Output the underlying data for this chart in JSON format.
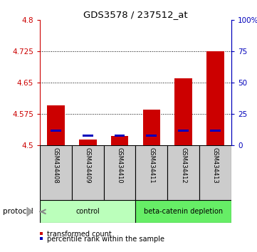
{
  "title": "GDS3578 / 237512_at",
  "samples": [
    "GSM434408",
    "GSM434409",
    "GSM434410",
    "GSM434411",
    "GSM434412",
    "GSM434413"
  ],
  "red_values": [
    4.595,
    4.513,
    4.522,
    4.585,
    4.66,
    4.725
  ],
  "blue_values": [
    4.535,
    4.522,
    4.522,
    4.522,
    4.535,
    4.535
  ],
  "y_min": 4.5,
  "y_max": 4.8,
  "y_ticks_left": [
    4.5,
    4.575,
    4.65,
    4.725,
    4.8
  ],
  "y_ticks_right": [
    0,
    25,
    50,
    75,
    100
  ],
  "y_ticks_right_labels": [
    "0",
    "25",
    "50",
    "75",
    "100%"
  ],
  "protocol_groups": [
    {
      "label": "control",
      "indices": [
        0,
        1,
        2
      ],
      "color": "#bbffbb"
    },
    {
      "label": "beta-catenin depletion",
      "indices": [
        3,
        4,
        5
      ],
      "color": "#66ee66"
    }
  ],
  "bar_width": 0.55,
  "red_color": "#cc0000",
  "blue_color": "#0000bb",
  "left_axis_color": "#cc0000",
  "right_axis_color": "#0000bb",
  "sample_bg_color": "#cccccc",
  "legend_red_label": "transformed count",
  "legend_blue_label": "percentile rank within the sample",
  "protocol_label": "protocol"
}
